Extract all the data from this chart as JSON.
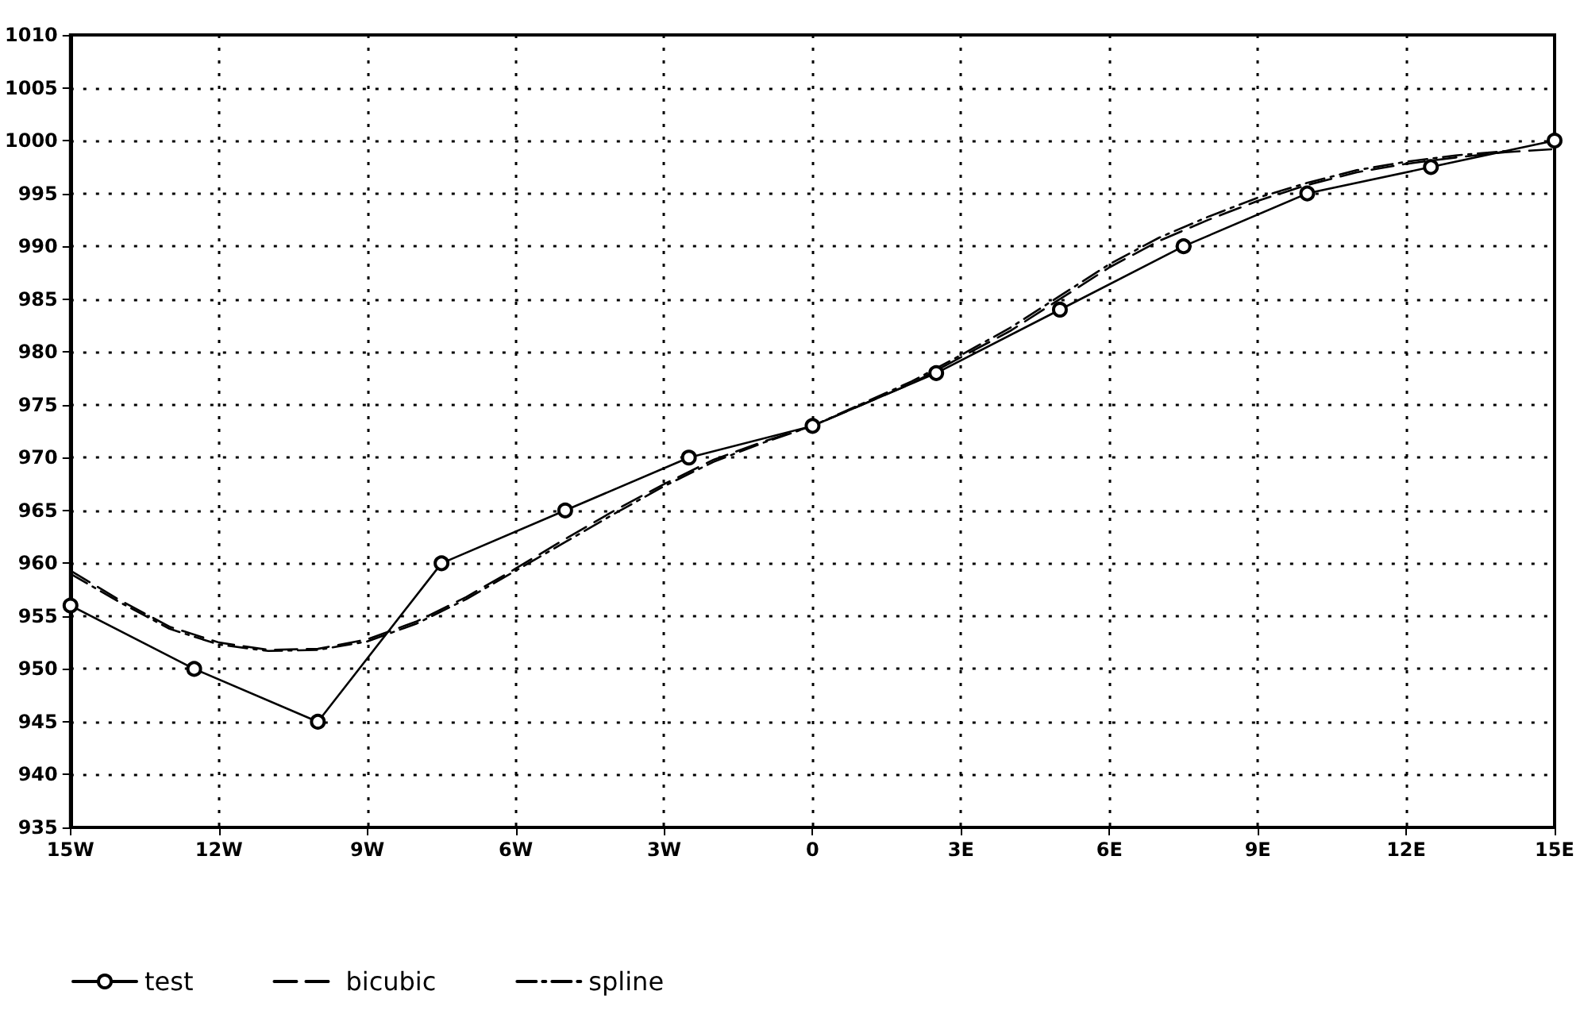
{
  "chart_data": {
    "type": "line",
    "xlim": [
      -15,
      15
    ],
    "ylim": [
      935,
      1010
    ],
    "xticks": [
      {
        "value": -15,
        "label": "15W"
      },
      {
        "value": -12,
        "label": "12W"
      },
      {
        "value": -9,
        "label": "9W"
      },
      {
        "value": -6,
        "label": "6W"
      },
      {
        "value": -3,
        "label": "3W"
      },
      0,
      {
        "value": 3,
        "label": "3E"
      },
      {
        "value": 6,
        "label": "6E"
      },
      {
        "value": 9,
        "label": "9E"
      },
      {
        "value": 12,
        "label": "12E"
      },
      {
        "value": 15,
        "label": "15E"
      }
    ],
    "yticks": [
      935,
      940,
      945,
      950,
      955,
      960,
      965,
      970,
      975,
      980,
      985,
      990,
      995,
      1000,
      1005,
      1010
    ],
    "grid": true,
    "legend": "bottom left",
    "series": [
      {
        "name": "test",
        "color": "#000000",
        "marker": "circle",
        "line_style": "solid",
        "x": [
          -15,
          -12.5,
          -10,
          -7.5,
          -5,
          -2.5,
          0,
          2.5,
          5,
          7.5,
          10,
          12.5,
          15
        ],
        "values": [
          956,
          950,
          945,
          960,
          965,
          970,
          973,
          978,
          984,
          990,
          995,
          997.5,
          1000
        ]
      },
      {
        "name": "bicubic",
        "color": "#000000",
        "marker": "none",
        "line_style": "dashed",
        "x": [
          -15,
          -14,
          -13,
          -12,
          -11,
          -10,
          -9,
          -8,
          -7,
          -6,
          -5,
          -4,
          -3,
          -2,
          -1,
          0,
          1,
          2,
          3,
          4,
          5,
          6,
          7,
          8,
          9,
          10,
          11,
          12,
          13,
          14,
          15
        ],
        "values": [
          959.3,
          956.5,
          954,
          952.5,
          951.8,
          951.9,
          952.8,
          954.5,
          956.8,
          959.5,
          962.3,
          965,
          967.5,
          969.8,
          971.5,
          973,
          975,
          977,
          979.5,
          982,
          985,
          988,
          990.5,
          992.5,
          994.3,
          995.8,
          997,
          997.8,
          998.4,
          998.9,
          999.2
        ]
      },
      {
        "name": "spline",
        "color": "#000000",
        "marker": "none",
        "line_style": "dashdot",
        "x": [
          -15,
          -14,
          -13,
          -12,
          -11,
          -10,
          -9,
          -8,
          -7,
          -6,
          -5,
          -4,
          -3,
          -2,
          -1,
          0,
          1,
          2,
          3,
          4,
          5,
          6,
          7,
          8,
          9,
          10,
          11,
          12,
          13,
          14
        ],
        "values": [
          959,
          956.3,
          953.8,
          952.3,
          951.7,
          951.8,
          952.6,
          954.3,
          956.6,
          959.3,
          962,
          964.7,
          967.3,
          969.6,
          971.4,
          973,
          975.1,
          977.2,
          979.7,
          982.3,
          985.3,
          988.3,
          990.8,
          992.8,
          994.6,
          996,
          997.2,
          998,
          998.6,
          999
        ]
      }
    ]
  }
}
